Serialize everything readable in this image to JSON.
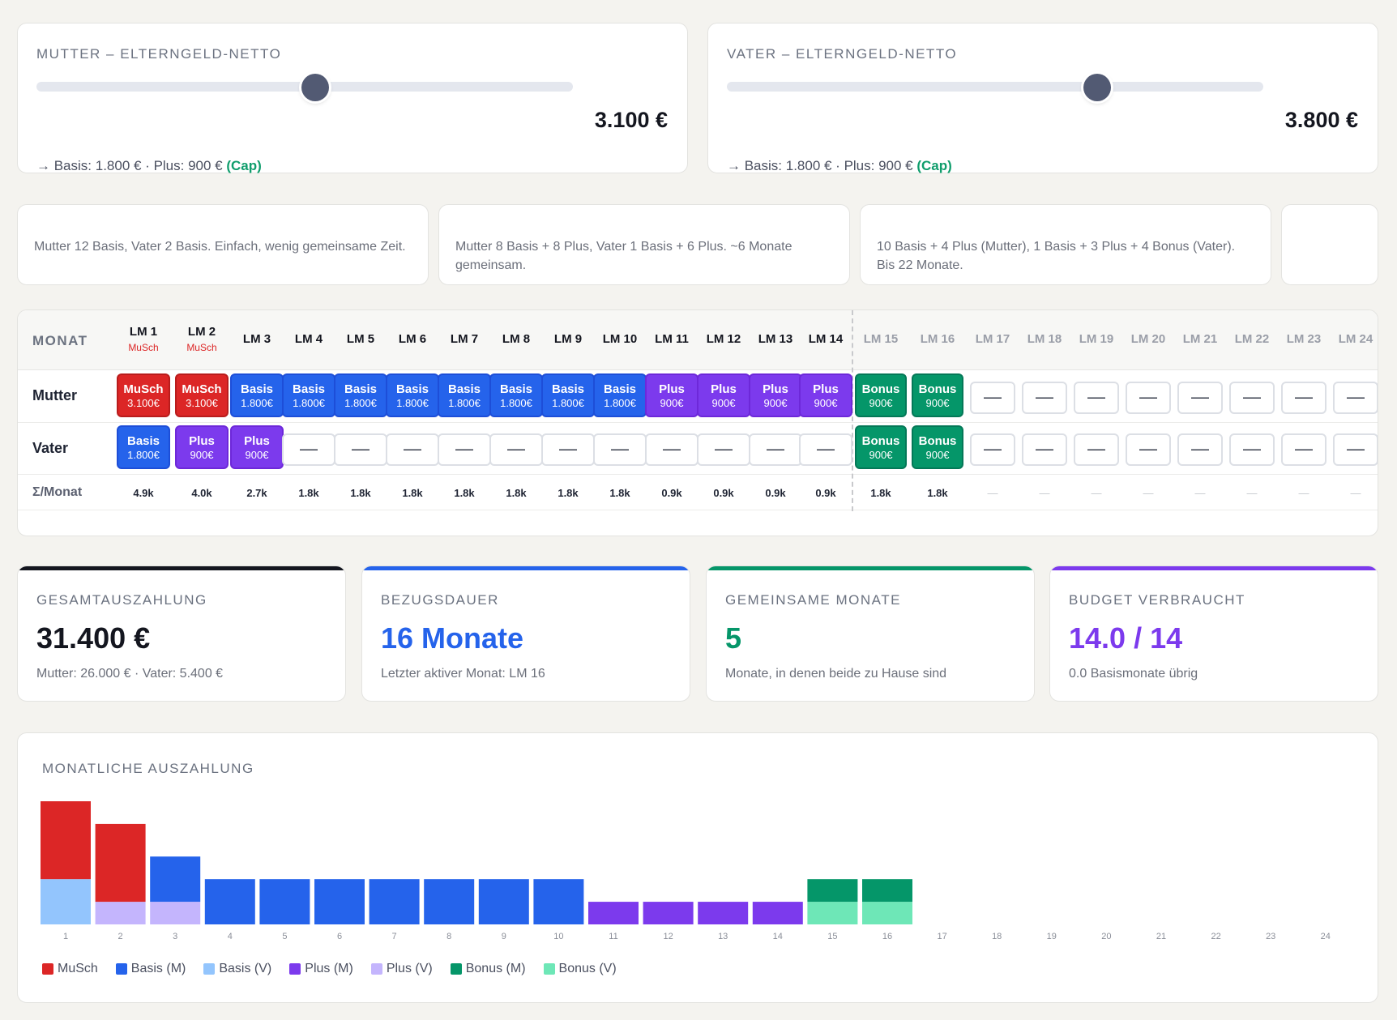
{
  "sliders": [
    {
      "title": "MUTTER – ELTERNGELD-NETTO",
      "value": "3.100 €",
      "fraction": 0.52,
      "sub_prefix": "→ Basis: 1.800 € · Plus: 900 €",
      "cap": "(Cap)"
    },
    {
      "title": "VATER – ELTERNGELD-NETTO",
      "value": "3.800 €",
      "fraction": 0.69,
      "sub_prefix": "→ Basis: 1.800 € · Plus: 900 €",
      "cap": "(Cap)"
    }
  ],
  "presets": [
    "Mutter 12 Basis, Vater 2 Basis. Einfach, wenig gemeinsame Zeit.",
    "Mutter 8 Basis + 8 Plus, Vater 1 Basis + 6 Plus. ~6 Monate gemeinsam.",
    "10 Basis + 4 Plus (Mutter), 1 Basis + 3 Plus + 4 Bonus (Vater). Bis 22 Monate.",
    ""
  ],
  "grid": {
    "monat_label": "MONAT",
    "months": [
      "LM 1",
      "LM 2",
      "LM 3",
      "LM 4",
      "LM 5",
      "LM 6",
      "LM 7",
      "LM 8",
      "LM 9",
      "LM 10",
      "LM 11",
      "LM 12",
      "LM 13",
      "LM 14",
      "LM 15",
      "LM 16",
      "LM 17",
      "LM 18",
      "LM 19",
      "LM 20",
      "LM 21",
      "LM 22",
      "LM 23",
      "LM 24"
    ],
    "month_subs": [
      "MuSch",
      "MuSch",
      "",
      "",
      "",
      "",
      "",
      "",
      "",
      "",
      "",
      "",
      "",
      "",
      "",
      "",
      "",
      "",
      "",
      "",
      "",
      "",
      "",
      ""
    ],
    "rows": [
      {
        "label": "Mutter",
        "cells": [
          {
            "type": "musch",
            "title": "MuSch",
            "value": "3.100€"
          },
          {
            "type": "musch",
            "title": "MuSch",
            "value": "3.100€"
          },
          {
            "type": "basis",
            "title": "Basis",
            "value": "1.800€"
          },
          {
            "type": "basis",
            "title": "Basis",
            "value": "1.800€"
          },
          {
            "type": "basis",
            "title": "Basis",
            "value": "1.800€"
          },
          {
            "type": "basis",
            "title": "Basis",
            "value": "1.800€"
          },
          {
            "type": "basis",
            "title": "Basis",
            "value": "1.800€"
          },
          {
            "type": "basis",
            "title": "Basis",
            "value": "1.800€"
          },
          {
            "type": "basis",
            "title": "Basis",
            "value": "1.800€"
          },
          {
            "type": "basis",
            "title": "Basis",
            "value": "1.800€"
          },
          {
            "type": "plus",
            "title": "Plus",
            "value": "900€"
          },
          {
            "type": "plus",
            "title": "Plus",
            "value": "900€"
          },
          {
            "type": "plus",
            "title": "Plus",
            "value": "900€"
          },
          {
            "type": "plus",
            "title": "Plus",
            "value": "900€"
          },
          {
            "type": "bonus",
            "title": "Bonus",
            "value": "900€"
          },
          {
            "type": "bonus",
            "title": "Bonus",
            "value": "900€"
          },
          {
            "type": "empty",
            "title": "—",
            "value": ""
          },
          {
            "type": "empty",
            "title": "—",
            "value": ""
          },
          {
            "type": "empty",
            "title": "—",
            "value": ""
          },
          {
            "type": "empty",
            "title": "—",
            "value": ""
          },
          {
            "type": "empty",
            "title": "—",
            "value": ""
          },
          {
            "type": "empty",
            "title": "—",
            "value": ""
          },
          {
            "type": "empty",
            "title": "—",
            "value": ""
          },
          {
            "type": "empty",
            "title": "—",
            "value": ""
          }
        ]
      },
      {
        "label": "Vater",
        "cells": [
          {
            "type": "basis",
            "title": "Basis",
            "value": "1.800€"
          },
          {
            "type": "plus",
            "title": "Plus",
            "value": "900€"
          },
          {
            "type": "plus",
            "title": "Plus",
            "value": "900€"
          },
          {
            "type": "empty",
            "title": "—",
            "value": ""
          },
          {
            "type": "empty",
            "title": "—",
            "value": ""
          },
          {
            "type": "empty",
            "title": "—",
            "value": ""
          },
          {
            "type": "empty",
            "title": "—",
            "value": ""
          },
          {
            "type": "empty",
            "title": "—",
            "value": ""
          },
          {
            "type": "empty",
            "title": "—",
            "value": ""
          },
          {
            "type": "empty",
            "title": "—",
            "value": ""
          },
          {
            "type": "empty",
            "title": "—",
            "value": ""
          },
          {
            "type": "empty",
            "title": "—",
            "value": ""
          },
          {
            "type": "empty",
            "title": "—",
            "value": ""
          },
          {
            "type": "empty",
            "title": "—",
            "value": ""
          },
          {
            "type": "bonus",
            "title": "Bonus",
            "value": "900€"
          },
          {
            "type": "bonus",
            "title": "Bonus",
            "value": "900€"
          },
          {
            "type": "empty",
            "title": "—",
            "value": ""
          },
          {
            "type": "empty",
            "title": "—",
            "value": ""
          },
          {
            "type": "empty",
            "title": "—",
            "value": ""
          },
          {
            "type": "empty",
            "title": "—",
            "value": ""
          },
          {
            "type": "empty",
            "title": "—",
            "value": ""
          },
          {
            "type": "empty",
            "title": "—",
            "value": ""
          },
          {
            "type": "empty",
            "title": "—",
            "value": ""
          },
          {
            "type": "empty",
            "title": "—",
            "value": ""
          }
        ]
      }
    ],
    "sum_label": "Σ/Monat",
    "sums": [
      "4.9k",
      "4.0k",
      "2.7k",
      "1.8k",
      "1.8k",
      "1.8k",
      "1.8k",
      "1.8k",
      "1.8k",
      "1.8k",
      "0.9k",
      "0.9k",
      "0.9k",
      "0.9k",
      "1.8k",
      "1.8k",
      "—",
      "—",
      "—",
      "—",
      "—",
      "—",
      "—",
      "—"
    ]
  },
  "stats": [
    {
      "label": "GESAMTAUSZAHLUNG",
      "value": "31.400 €",
      "sub": "Mutter: 26.000 € · Vater: 5.400 €",
      "color": "#14161f"
    },
    {
      "label": "BEZUGSDAUER",
      "value": "16 Monate",
      "sub": "Letzter aktiver Monat: LM 16",
      "color": "#2563eb"
    },
    {
      "label": "GEMEINSAME MONATE",
      "value": "5",
      "sub": "Monate, in denen beide zu Hause sind",
      "color": "#059669"
    },
    {
      "label": "BUDGET VERBRAUCHT",
      "value": "14.0 / 14",
      "sub": "0.0 Basismonate übrig",
      "color": "#7c3aed"
    }
  ],
  "chart": {
    "label": "MONATLICHE AUSZAHLUNG"
  },
  "chart_data": {
    "type": "bar",
    "stacked": true,
    "categories": [
      "1",
      "2",
      "3",
      "4",
      "5",
      "6",
      "7",
      "8",
      "9",
      "10",
      "11",
      "12",
      "13",
      "14",
      "15",
      "16",
      "17",
      "18",
      "19",
      "20",
      "21",
      "22",
      "23",
      "24"
    ],
    "series": [
      {
        "name": "MuSch",
        "color": "#dc2626",
        "values": [
          3100,
          3100,
          0,
          0,
          0,
          0,
          0,
          0,
          0,
          0,
          0,
          0,
          0,
          0,
          0,
          0,
          0,
          0,
          0,
          0,
          0,
          0,
          0,
          0
        ]
      },
      {
        "name": "Basis (M)",
        "color": "#2563eb",
        "values": [
          0,
          0,
          1800,
          1800,
          1800,
          1800,
          1800,
          1800,
          1800,
          1800,
          0,
          0,
          0,
          0,
          0,
          0,
          0,
          0,
          0,
          0,
          0,
          0,
          0,
          0
        ]
      },
      {
        "name": "Basis (V)",
        "color": "#93c5fd",
        "values": [
          1800,
          0,
          0,
          0,
          0,
          0,
          0,
          0,
          0,
          0,
          0,
          0,
          0,
          0,
          0,
          0,
          0,
          0,
          0,
          0,
          0,
          0,
          0,
          0
        ]
      },
      {
        "name": "Plus (M)",
        "color": "#7c3aed",
        "values": [
          0,
          0,
          0,
          0,
          0,
          0,
          0,
          0,
          0,
          0,
          900,
          900,
          900,
          900,
          0,
          0,
          0,
          0,
          0,
          0,
          0,
          0,
          0,
          0
        ]
      },
      {
        "name": "Plus (V)",
        "color": "#c4b5fd",
        "values": [
          0,
          900,
          900,
          0,
          0,
          0,
          0,
          0,
          0,
          0,
          0,
          0,
          0,
          0,
          0,
          0,
          0,
          0,
          0,
          0,
          0,
          0,
          0,
          0
        ]
      },
      {
        "name": "Bonus (M)",
        "color": "#059669",
        "values": [
          0,
          0,
          0,
          0,
          0,
          0,
          0,
          0,
          0,
          0,
          0,
          0,
          0,
          0,
          900,
          900,
          0,
          0,
          0,
          0,
          0,
          0,
          0,
          0
        ]
      },
      {
        "name": "Bonus (V)",
        "color": "#6ee7b7",
        "values": [
          0,
          0,
          0,
          0,
          0,
          0,
          0,
          0,
          0,
          0,
          0,
          0,
          0,
          0,
          900,
          900,
          0,
          0,
          0,
          0,
          0,
          0,
          0,
          0
        ]
      }
    ],
    "stack_order": [
      "Basis (V)",
      "Plus (V)",
      "Bonus (V)",
      "Basis (M)",
      "Plus (M)",
      "Bonus (M)",
      "MuSch"
    ],
    "ymax": 4900
  }
}
